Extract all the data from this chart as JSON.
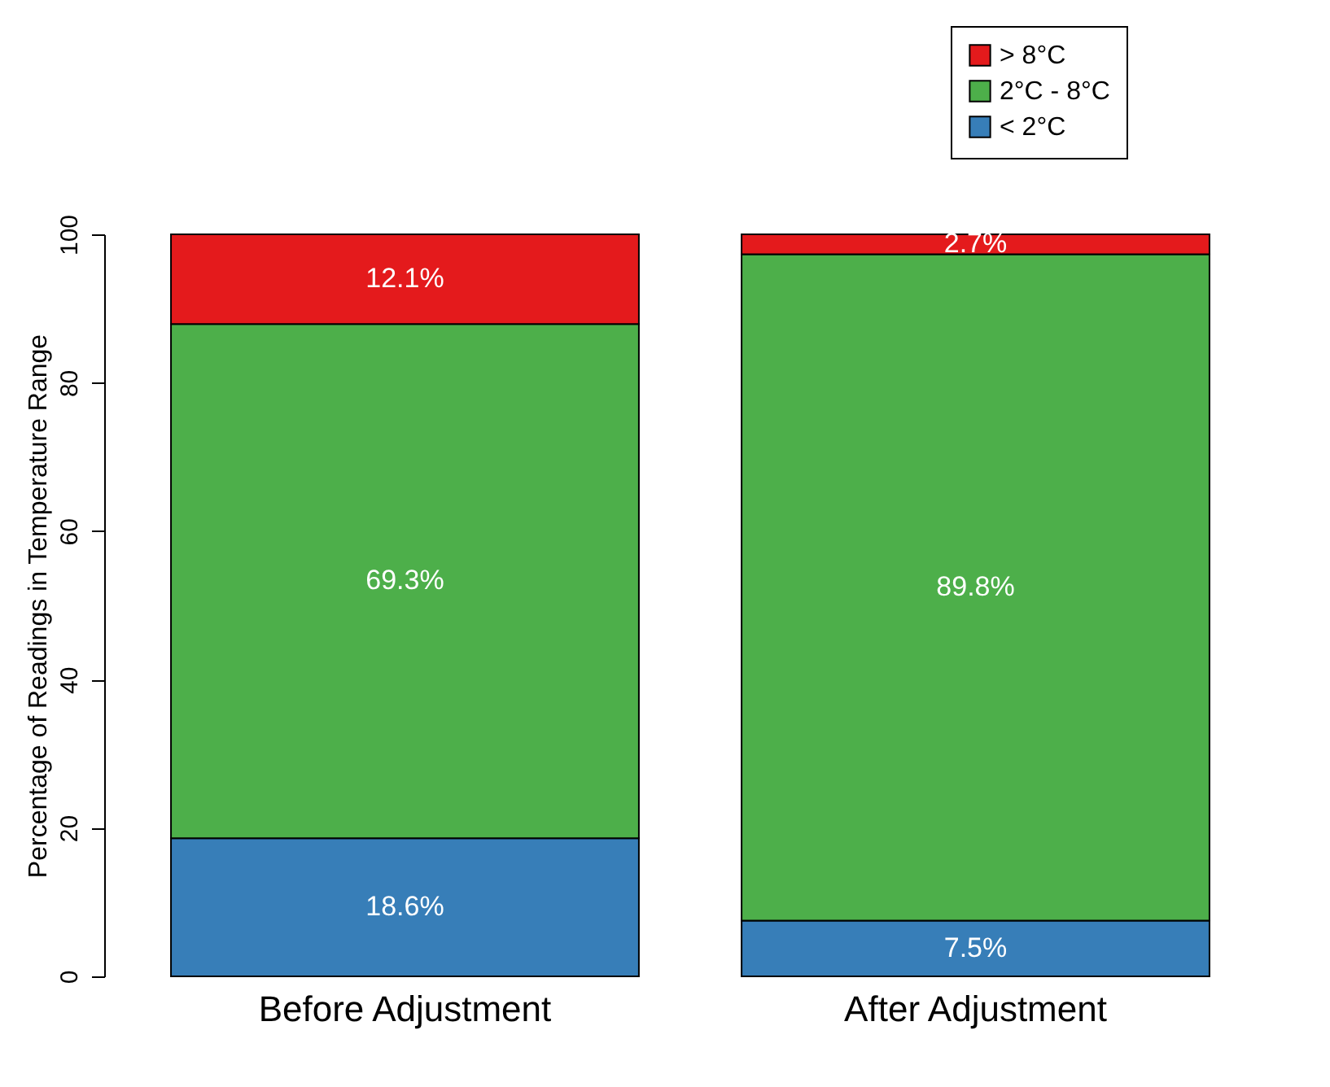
{
  "chart_data": {
    "type": "bar",
    "stacked": true,
    "ylabel": "Percentage of Readings in Temperature Range",
    "categories": [
      "Before Adjustment",
      "After Adjustment"
    ],
    "series": [
      {
        "name": "< 2°C",
        "color": "#377eb8",
        "values": [
          18.6,
          7.5
        ],
        "value_labels": [
          "18.6%",
          "7.5%"
        ]
      },
      {
        "name": "2°C - 8°C",
        "color": "#4daf4a",
        "values": [
          69.3,
          89.8
        ],
        "value_labels": [
          "69.3%",
          "89.8%"
        ]
      },
      {
        "name": "> 8°C",
        "color": "#e41a1c",
        "values": [
          12.1,
          2.7
        ],
        "value_labels": [
          "12.1%",
          "2.7%"
        ]
      }
    ],
    "ylim": [
      0,
      100
    ],
    "yticks": [
      0,
      20,
      40,
      60,
      80,
      100
    ],
    "grid": false,
    "legend": "top right"
  }
}
